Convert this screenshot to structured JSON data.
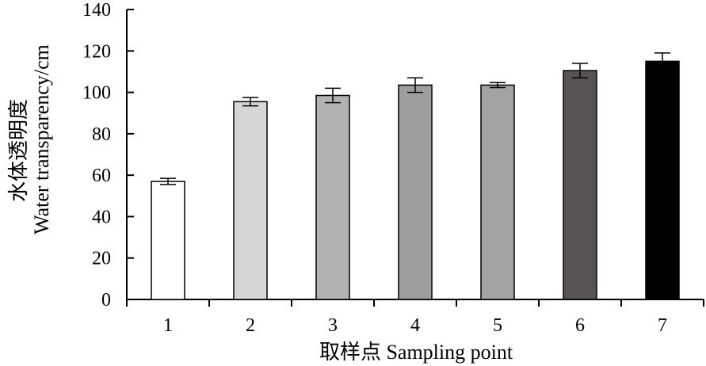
{
  "chart_data": {
    "type": "bar",
    "categories": [
      "1",
      "2",
      "3",
      "4",
      "5",
      "6",
      "7"
    ],
    "values": [
      57,
      95.5,
      98.5,
      103.5,
      103.5,
      110.5,
      115
    ],
    "errors": [
      1.5,
      2,
      3.5,
      3.5,
      1.2,
      3.5,
      4
    ],
    "bar_colors": [
      "#ffffff",
      "#d6d6d6",
      "#b2b2b2",
      "#9d9d9d",
      "#a3a3a3",
      "#575354",
      "#000000"
    ],
    "xlabel": "取样点 Sampling point",
    "ylabel_line1": "水体透明度",
    "ylabel_line2": "Water transparency/cm",
    "ylim": [
      0,
      140
    ],
    "yticks": [
      0,
      20,
      40,
      60,
      80,
      100,
      120,
      140
    ],
    "grid": false,
    "legend": "none"
  }
}
